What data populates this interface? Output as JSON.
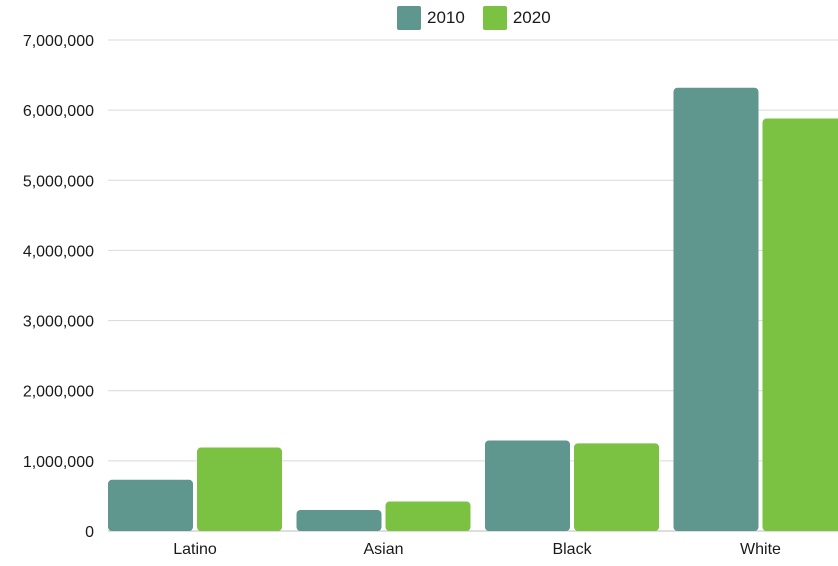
{
  "chart_data": {
    "type": "bar",
    "categories": [
      "Latino",
      "Asian",
      "Black",
      "White"
    ],
    "series": [
      {
        "name": "2010",
        "color": "#5f968d",
        "values": [
          730000,
          300000,
          1290000,
          6320000
        ]
      },
      {
        "name": "2020",
        "color": "#7bc142",
        "values": [
          1190000,
          420000,
          1250000,
          5880000
        ]
      }
    ],
    "ylim": [
      0,
      7000000
    ],
    "y_ticks": [
      "0",
      "1,000,000",
      "2,000,000",
      "3,000,000",
      "4,000,000",
      "5,000,000",
      "6,000,000",
      "7,000,000"
    ],
    "grid": true,
    "legend_position": "top-center",
    "title": "",
    "xlabel": "",
    "ylabel": ""
  }
}
